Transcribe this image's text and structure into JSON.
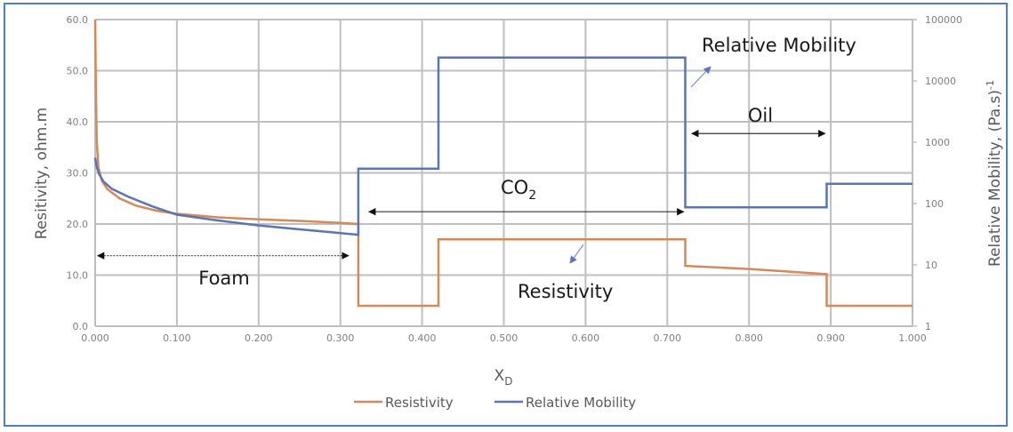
{
  "chart_data": {
    "type": "line",
    "title": "",
    "xlabel": "X",
    "xlabel_subscript": "D",
    "ylabel": "Resitivity, ohm.m",
    "y2label": "Relative Mobility, (Pa.s)",
    "y2label_superscript": "-1",
    "xlim": [
      0,
      1.0
    ],
    "ylim": [
      0,
      60
    ],
    "y2lim": [
      1,
      100000
    ],
    "y2scale": "log",
    "grid": true,
    "x_ticks": [
      "0.000",
      "0.100",
      "0.200",
      "0.300",
      "0.400",
      "0.500",
      "0.600",
      "0.700",
      "0.800",
      "0.900",
      "1.000"
    ],
    "y_ticks": [
      "0.0",
      "10.0",
      "20.0",
      "30.0",
      "40.0",
      "50.0",
      "60.0"
    ],
    "y2_ticks": [
      "1",
      "10",
      "100",
      "1000",
      "10000",
      "100000"
    ],
    "legend_position": "bottom",
    "series": [
      {
        "name": "Resistivity",
        "axis": "left",
        "color": "#d4895a",
        "points": [
          [
            0.0,
            60.0
          ],
          [
            0.001,
            45.0
          ],
          [
            0.002,
            36.0
          ],
          [
            0.004,
            31.0
          ],
          [
            0.008,
            28.5
          ],
          [
            0.015,
            26.8
          ],
          [
            0.03,
            25.0
          ],
          [
            0.05,
            23.6
          ],
          [
            0.075,
            22.6
          ],
          [
            0.1,
            22.0
          ],
          [
            0.15,
            21.3
          ],
          [
            0.2,
            20.9
          ],
          [
            0.25,
            20.6
          ],
          [
            0.3,
            20.2
          ],
          [
            0.322,
            20.0
          ],
          [
            0.322,
            4.0
          ],
          [
            0.42,
            4.0
          ],
          [
            0.42,
            17.0
          ],
          [
            0.722,
            17.0
          ],
          [
            0.722,
            11.8
          ],
          [
            0.8,
            11.2
          ],
          [
            0.895,
            10.2
          ],
          [
            0.895,
            4.0
          ],
          [
            1.0,
            4.0
          ]
        ]
      },
      {
        "name": "Relative Mobility",
        "axis": "right",
        "color": "#5b74b2",
        "points": [
          [
            0.0,
            560
          ],
          [
            0.002,
            390
          ],
          [
            0.005,
            300
          ],
          [
            0.01,
            230
          ],
          [
            0.02,
            175
          ],
          [
            0.04,
            130
          ],
          [
            0.07,
            90
          ],
          [
            0.1,
            66
          ],
          [
            0.15,
            53
          ],
          [
            0.2,
            44
          ],
          [
            0.25,
            38
          ],
          [
            0.3,
            33
          ],
          [
            0.322,
            31
          ],
          [
            0.322,
            370
          ],
          [
            0.42,
            370
          ],
          [
            0.42,
            24000
          ],
          [
            0.722,
            24000
          ],
          [
            0.722,
            87
          ],
          [
            0.895,
            87
          ],
          [
            0.895,
            210
          ],
          [
            1.0,
            210
          ]
        ]
      }
    ],
    "annotations": [
      {
        "name": "foam",
        "text": "Foam",
        "arrow_from_x": 0.003,
        "arrow_to_x": 0.31,
        "arrow_y": 13.8,
        "style": "dotted-double-arrow"
      },
      {
        "name": "co2",
        "text": "CO",
        "subscript": "2",
        "arrow_from_x": 0.335,
        "arrow_to_x": 0.72,
        "arrow_y": 22.4,
        "style": "double-arrow"
      },
      {
        "name": "oil",
        "text": "Oil",
        "arrow_from_x": 0.73,
        "arrow_to_x": 0.893,
        "arrow_y": 37.7,
        "style": "double-arrow"
      },
      {
        "name": "relative-mobility-label",
        "text": "Relative Mobility",
        "pointer": "arrow to blue line"
      },
      {
        "name": "resistivity-label",
        "text": "Resistivity",
        "pointer": "arrow from orange line"
      }
    ]
  }
}
